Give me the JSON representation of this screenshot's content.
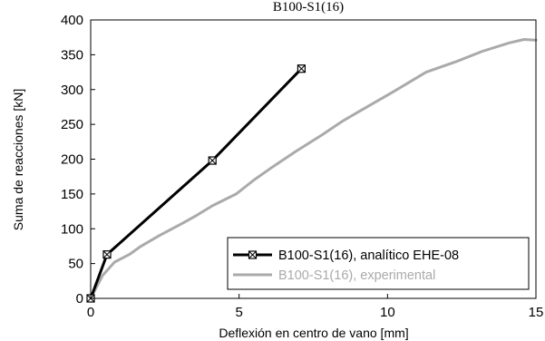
{
  "chart_data": {
    "type": "line",
    "title": "B100-S1(16)",
    "xlabel": "Deflexión en centro de vano [mm]",
    "ylabel": "Suma de reacciones [kN]",
    "xlim": [
      0,
      15
    ],
    "ylim": [
      0,
      400
    ],
    "xticks": [
      0,
      5,
      10,
      15
    ],
    "yticks": [
      0,
      50,
      100,
      150,
      200,
      250,
      300,
      350,
      400
    ],
    "xtick_labels": [
      "0",
      "5",
      "10",
      "15"
    ],
    "ytick_labels": [
      "0",
      "50",
      "100",
      "150",
      "200",
      "250",
      "300",
      "350",
      "400"
    ],
    "grid": false,
    "legend_position": "bottom-right",
    "series": [
      {
        "name": "B100-S1(16), analítico EHE-08",
        "color": "#000000",
        "marker": "square-x",
        "x": [
          0,
          0.55,
          4.1,
          7.1
        ],
        "y": [
          0,
          63,
          198,
          330
        ]
      },
      {
        "name": "B100-S1(16), experimental",
        "color": "#aaaaaa",
        "marker": "none",
        "x": [
          0,
          0.4,
          0.8,
          1.3,
          1.7,
          2.3,
          3.1,
          3.6,
          4.1,
          4.9,
          5.5,
          6.1,
          6.9,
          7.8,
          8.5,
          9.1,
          10.2,
          11.3,
          12.3,
          13.2,
          14.1,
          14.6,
          15.0
        ],
        "y": [
          0,
          33,
          52,
          63,
          75,
          90,
          108,
          120,
          133,
          150,
          170,
          188,
          211,
          235,
          255,
          270,
          297,
          325,
          340,
          355,
          367,
          372,
          371
        ]
      }
    ]
  }
}
